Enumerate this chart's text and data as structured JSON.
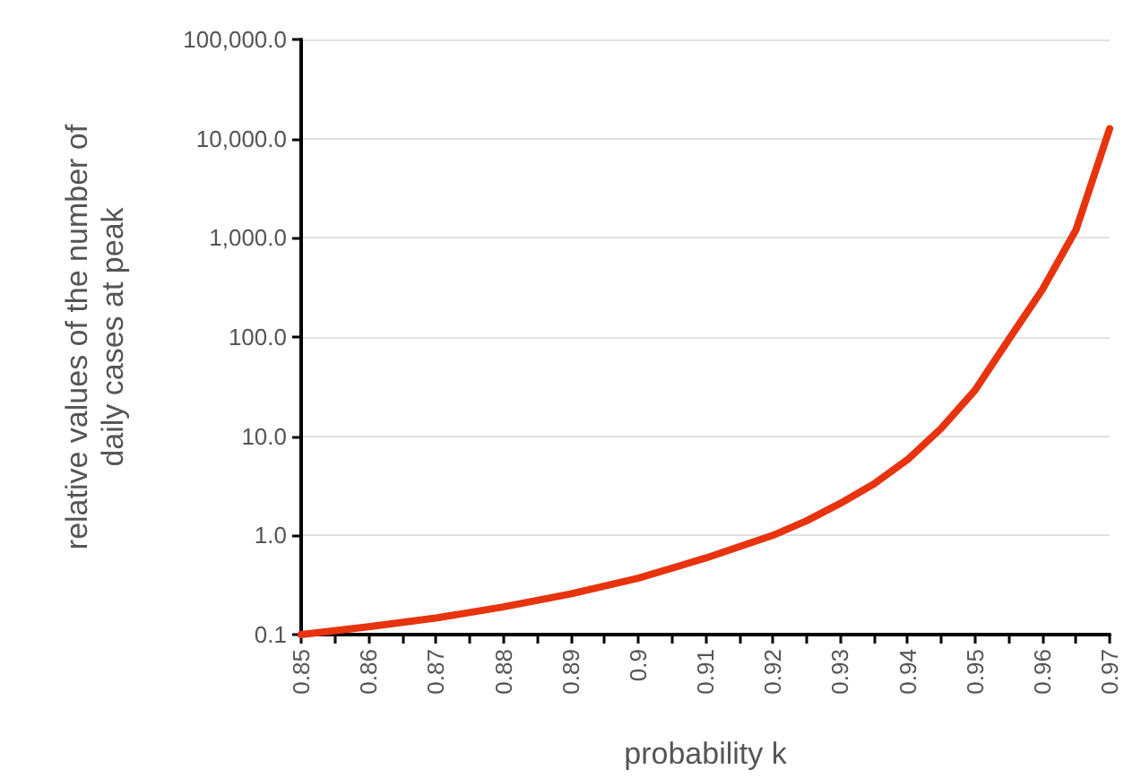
{
  "chart_data": {
    "type": "line",
    "xlabel": "probability k",
    "ylabel": "relative values of the number of\ndaily cases at peak",
    "x": [
      0.85,
      0.86,
      0.87,
      0.88,
      0.89,
      0.9,
      0.91,
      0.92,
      0.925,
      0.93,
      0.935,
      0.94,
      0.945,
      0.95,
      0.955,
      0.96,
      0.965,
      0.97
    ],
    "series": [
      {
        "color": "#e8330f",
        "values": [
          0.1,
          0.12,
          0.147,
          0.19,
          0.257,
          0.37,
          0.59,
          1.0,
          1.4,
          2.1,
          3.3,
          5.8,
          12,
          29,
          94,
          300,
          1200,
          12600
        ]
      }
    ],
    "log": "y",
    "grid": "y",
    "marker": "none",
    "line_style": "solid",
    "xlim": [
      0.85,
      0.97
    ],
    "xticks": [
      0.85,
      {
        "value": 0.855,
        "label": null
      },
      0.86,
      {
        "value": 0.865,
        "label": null
      },
      0.87,
      {
        "value": 0.875,
        "label": null
      },
      0.88,
      {
        "value": 0.885,
        "label": null
      },
      0.89,
      {
        "value": 0.895,
        "label": null
      },
      0.9,
      {
        "value": 0.905,
        "label": null
      },
      0.91,
      {
        "value": 0.915,
        "label": null
      },
      0.92,
      {
        "value": 0.925,
        "label": null
      },
      0.93,
      {
        "value": 0.935,
        "label": null
      },
      0.94,
      {
        "value": 0.945,
        "label": null
      },
      0.95,
      {
        "value": 0.955,
        "label": null
      },
      0.96,
      {
        "value": 0.965,
        "label": null
      },
      0.97
    ],
    "ylim": [
      0.1,
      100000
    ],
    "yticks": [
      {
        "value": 0.1,
        "label": "0.1"
      },
      {
        "value": 1,
        "label": "1.0"
      },
      {
        "value": 10,
        "label": "10.0"
      },
      {
        "value": 100,
        "label": "100.0"
      },
      {
        "value": 1000,
        "label": "1,000.0"
      },
      {
        "value": 10000,
        "label": "10,000.0"
      },
      {
        "value": 100000,
        "label": "100,000.0"
      }
    ]
  }
}
